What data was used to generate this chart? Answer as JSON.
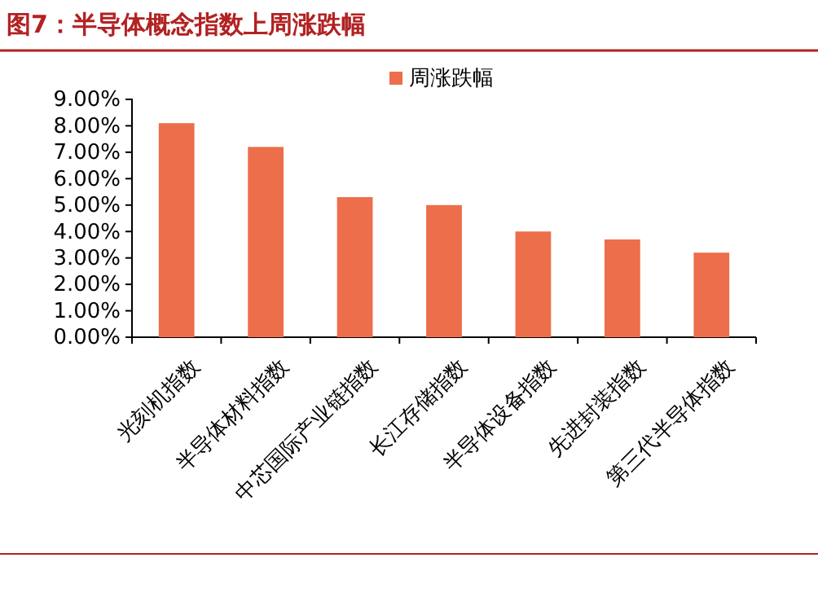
{
  "chart_data": {
    "type": "bar",
    "title": "图7：半导体概念指数上周涨跌幅",
    "categories": [
      "光刻机指数",
      "半导体材料指数",
      "中芯国际产业链指数",
      "长江存储指数",
      "半导体设备指数",
      "先进封装指数",
      "第三代半导体指数"
    ],
    "series": [
      {
        "name": "周涨跌幅",
        "color": "#ed6e4a",
        "values": [
          8.1,
          7.2,
          5.3,
          5.0,
          4.0,
          3.7,
          3.2
        ]
      }
    ],
    "ylim": [
      0,
      9
    ],
    "yticks": [
      {
        "value": 0,
        "label": "0.00%"
      },
      {
        "value": 1,
        "label": "1.00%"
      },
      {
        "value": 2,
        "label": "2.00%"
      },
      {
        "value": 3,
        "label": "3.00%"
      },
      {
        "value": 4,
        "label": "4.00%"
      },
      {
        "value": 5,
        "label": "5.00%"
      },
      {
        "value": 6,
        "label": "6.00%"
      },
      {
        "value": 7,
        "label": "7.00%"
      },
      {
        "value": 8,
        "label": "8.00%"
      },
      {
        "value": 9,
        "label": "9.00%"
      }
    ],
    "grid": false,
    "legend": "top"
  }
}
